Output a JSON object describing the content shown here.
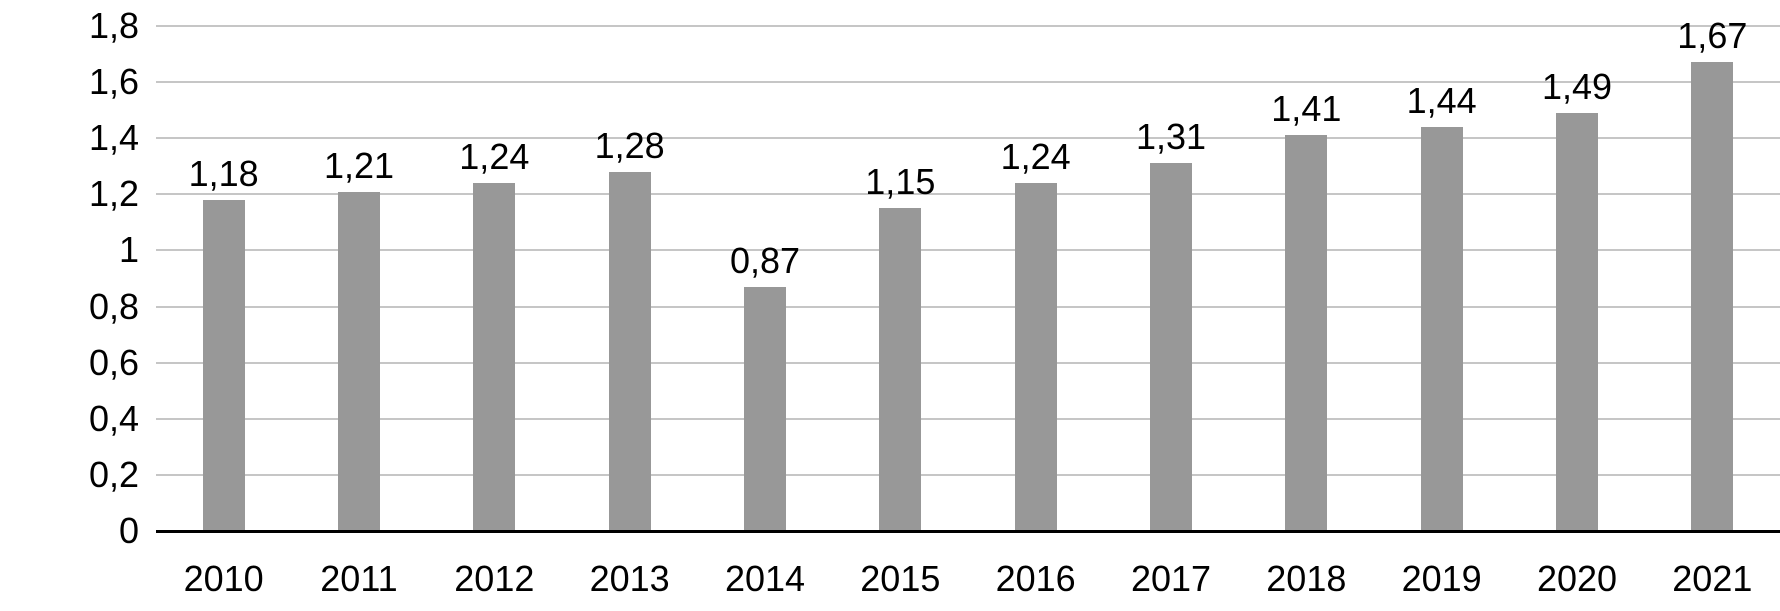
{
  "chart_data": {
    "type": "bar",
    "title": "",
    "xlabel": "",
    "ylabel": "",
    "categories": [
      "2010",
      "2011",
      "2012",
      "2013",
      "2014",
      "2015",
      "2016",
      "2017",
      "2018",
      "2019",
      "2020",
      "2021"
    ],
    "values": [
      1.18,
      1.21,
      1.24,
      1.28,
      0.87,
      1.15,
      1.24,
      1.31,
      1.41,
      1.44,
      1.49,
      1.67
    ],
    "value_labels": [
      "1,18",
      "1,21",
      "1,24",
      "1,28",
      "0,87",
      "1,15",
      "1,24",
      "1,31",
      "1,41",
      "1,44",
      "1,49",
      "1,67"
    ],
    "ylim": [
      0,
      1.8
    ],
    "ytick_step": 0.2,
    "ytick_labels": [
      "0",
      "0,2",
      "0,4",
      "0,6",
      "0,8",
      "1",
      "1,2",
      "1,4",
      "1,6",
      "1,8"
    ],
    "decimal_separator": ",",
    "grid": true,
    "legend": false,
    "colors": {
      "bar": "#989898",
      "gridline": "#c6c6c6",
      "axis": "#000000",
      "text": "#000000",
      "background": "#ffffff"
    }
  }
}
